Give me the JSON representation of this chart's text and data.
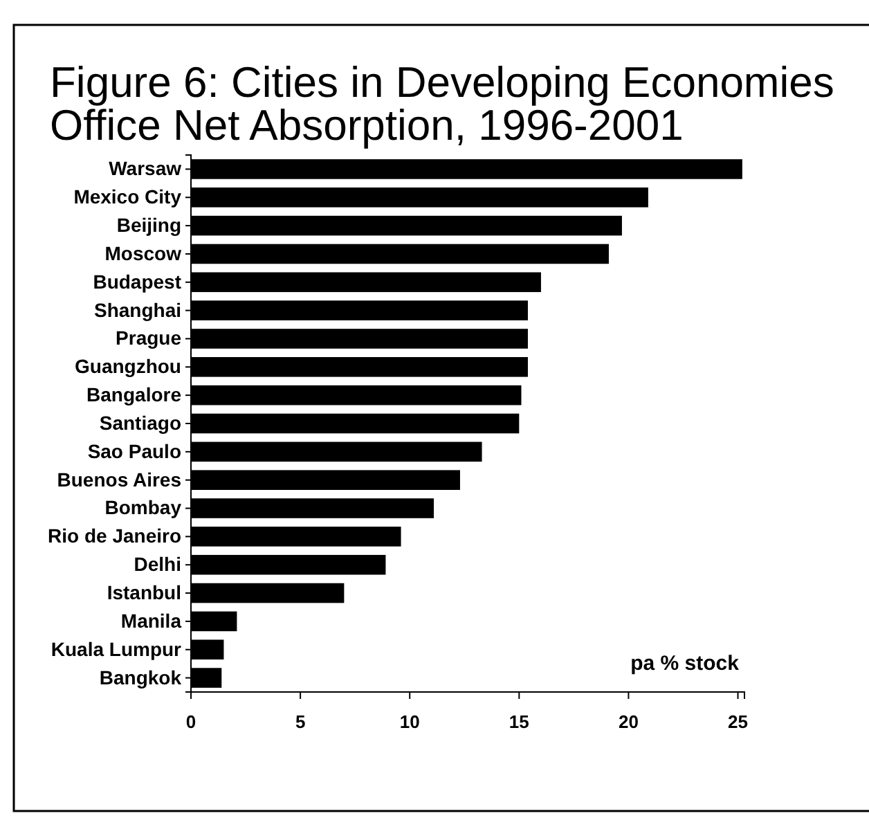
{
  "chart_data": {
    "type": "bar",
    "orientation": "horizontal",
    "title": "Figure 6: Cities in Developing Economies Office Net Absorption, 1996-2001",
    "categories": [
      "Warsaw",
      "Mexico City",
      "Beijing",
      "Moscow",
      "Budapest",
      "Shanghai",
      "Prague",
      "Guangzhou",
      "Bangalore",
      "Santiago",
      "Sao Paulo",
      "Buenos Aires",
      "Bombay",
      "Rio de Janeiro",
      "Delhi",
      "Istanbul",
      "Manila",
      "Kuala Lumpur",
      "Bangkok"
    ],
    "values": [
      25.2,
      20.9,
      19.7,
      19.1,
      16.0,
      15.4,
      15.4,
      15.4,
      15.1,
      15.0,
      13.3,
      12.3,
      11.1,
      9.6,
      8.9,
      7.0,
      2.1,
      1.5,
      1.4
    ],
    "color": "#000000",
    "xlim": [
      0,
      25.3
    ],
    "xticks": [
      0,
      5,
      10,
      15,
      20,
      25
    ],
    "grid": false,
    "annotations": [
      "pa % stock"
    ]
  }
}
